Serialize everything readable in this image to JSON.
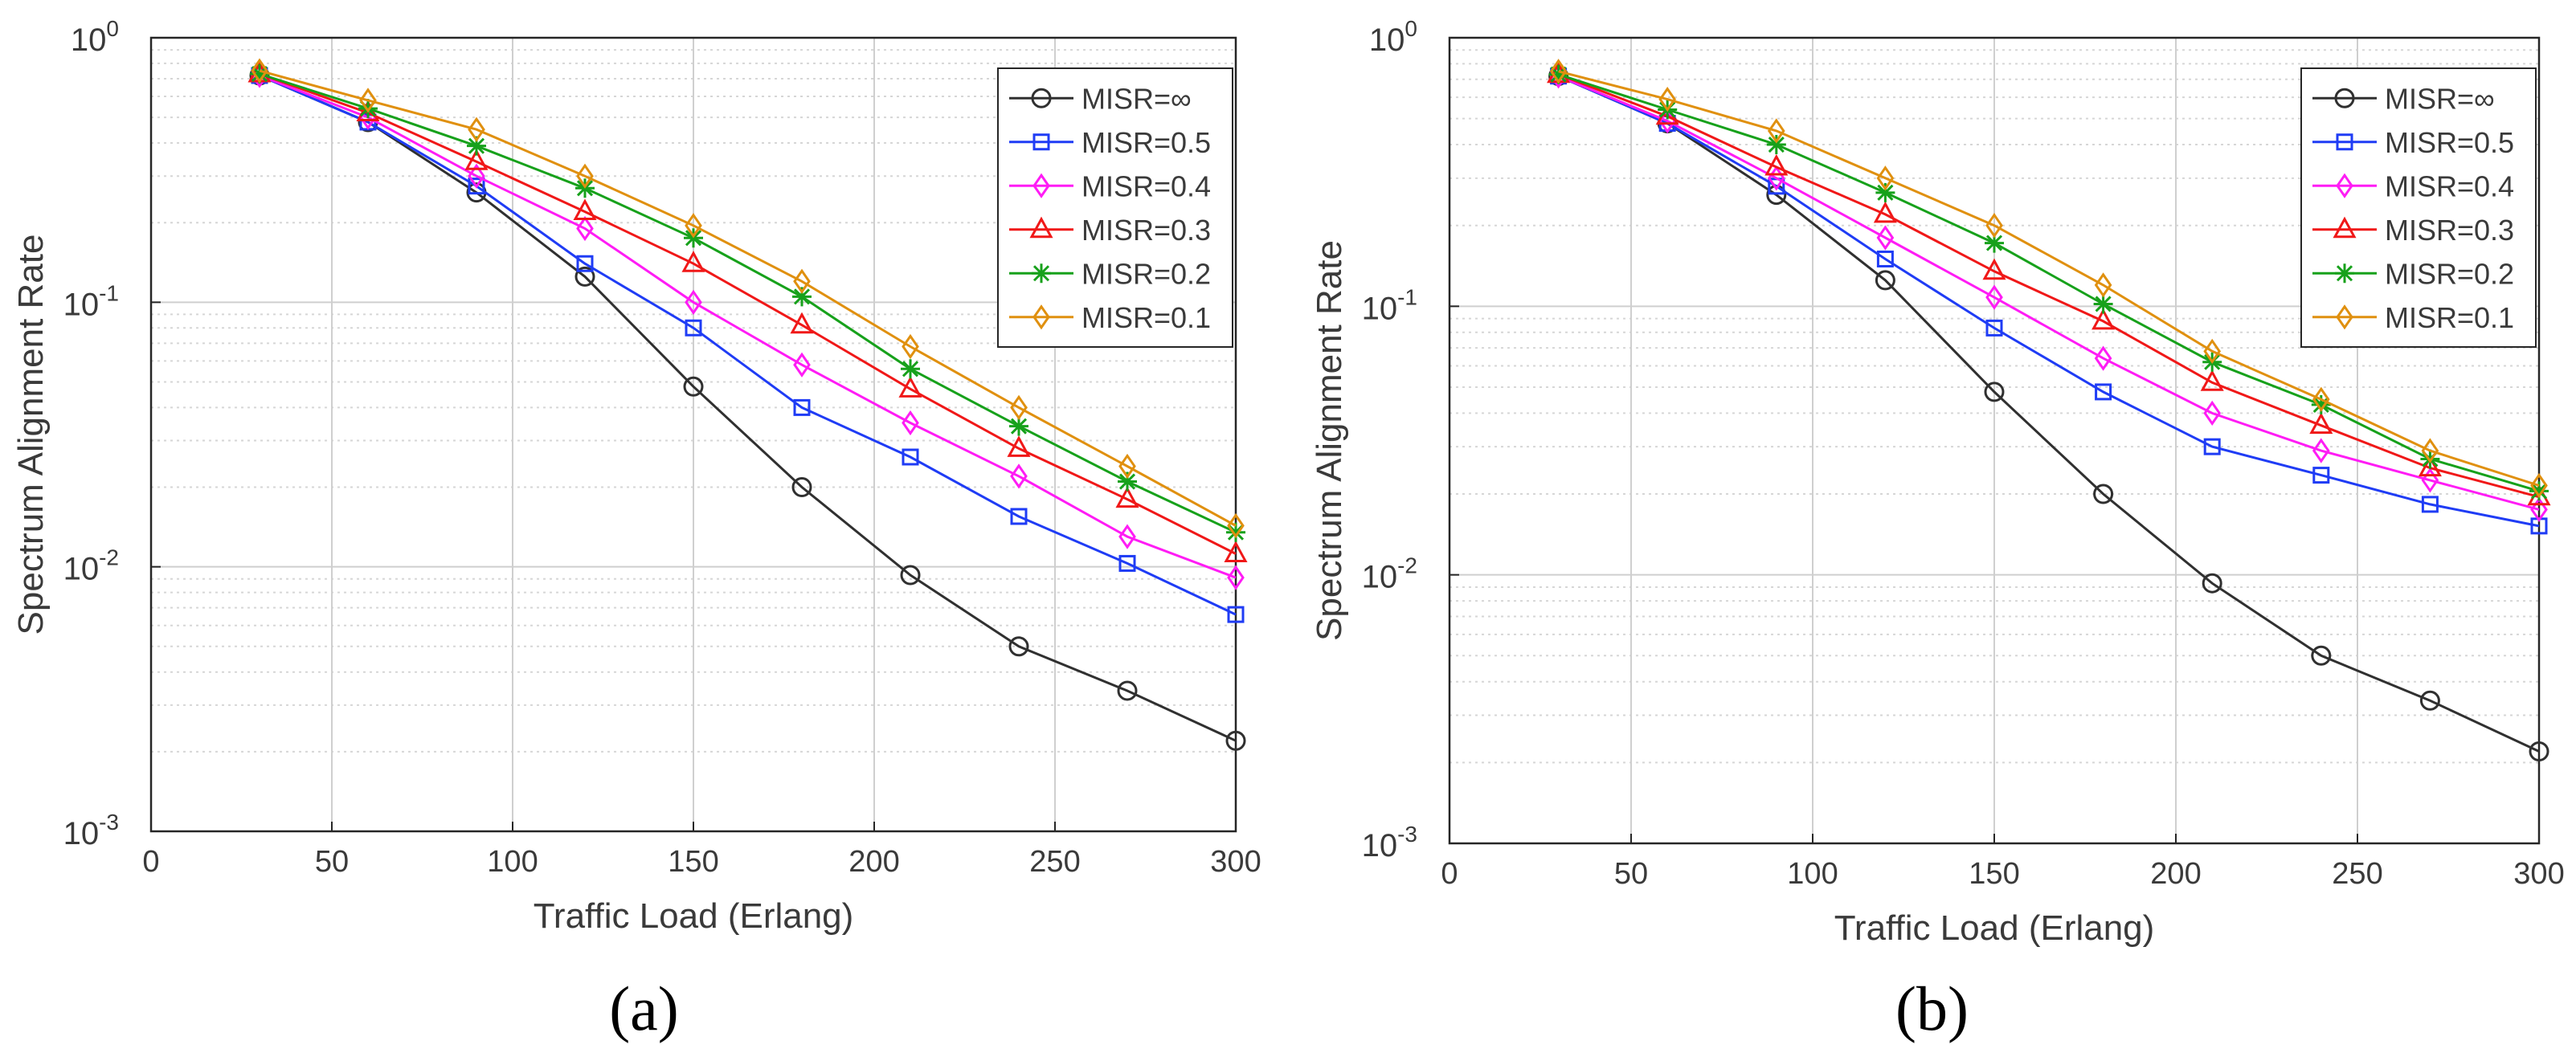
{
  "colors": {
    "MISR=∞": "#303030",
    "MISR=0.5": "#1f3cf5",
    "MISR=0.4": "#ff1cf5",
    "MISR=0.3": "#f01818",
    "MISR=0.2": "#17a11b",
    "MISR=0.1": "#e0900f"
  },
  "chart_data": [
    {
      "type": "line",
      "caption": "(a)",
      "xlabel": "Traffic Load (Erlang)",
      "ylabel": "Spectrum Alignment Rate",
      "xlim": [
        0,
        300
      ],
      "ylim": [
        0.001,
        1
      ],
      "yscale": "log",
      "xticks": [
        0,
        50,
        100,
        150,
        200,
        250,
        300
      ],
      "yticks": [
        {
          "base": "10",
          "exp": "-3",
          "value": 0.001
        },
        {
          "base": "10",
          "exp": "-2",
          "value": 0.01
        },
        {
          "base": "10",
          "exp": "-1",
          "value": 0.1
        },
        {
          "base": "10",
          "exp": "0",
          "value": 1
        }
      ],
      "grid": true,
      "legend": "top-right",
      "x": [
        30,
        60,
        90,
        120,
        150,
        180,
        210,
        240,
        270,
        300
      ],
      "series": [
        {
          "name": "MISR=∞",
          "marker": "circle",
          "values": [
            0.72,
            0.48,
            0.26,
            0.125,
            0.048,
            0.02,
            0.0093,
            0.005,
            0.0034,
            0.0022
          ]
        },
        {
          "name": "MISR=0.5",
          "marker": "square",
          "values": [
            0.72,
            0.48,
            0.275,
            0.14,
            0.08,
            0.04,
            0.026,
            0.0155,
            0.0103,
            0.0066
          ]
        },
        {
          "name": "MISR=0.4",
          "marker": "diamond",
          "values": [
            0.72,
            0.5,
            0.3,
            0.19,
            0.1,
            0.058,
            0.035,
            0.022,
            0.013,
            0.0091
          ]
        },
        {
          "name": "MISR=0.3",
          "marker": "triangle",
          "values": [
            0.73,
            0.52,
            0.34,
            0.22,
            0.14,
            0.082,
            0.047,
            0.028,
            0.018,
            0.0112
          ]
        },
        {
          "name": "MISR=0.2",
          "marker": "star",
          "values": [
            0.73,
            0.54,
            0.39,
            0.27,
            0.175,
            0.105,
            0.056,
            0.034,
            0.021,
            0.0135
          ]
        },
        {
          "name": "MISR=0.1",
          "marker": "diamond",
          "values": [
            0.75,
            0.58,
            0.45,
            0.3,
            0.195,
            0.12,
            0.068,
            0.04,
            0.024,
            0.0143
          ]
        }
      ]
    },
    {
      "type": "line",
      "caption": "(b)",
      "xlabel": "Traffic Load (Erlang)",
      "ylabel": "Spectrum Alignment Rate",
      "xlim": [
        0,
        300
      ],
      "ylim": [
        0.001,
        1
      ],
      "yscale": "log",
      "xticks": [
        0,
        50,
        100,
        150,
        200,
        250,
        300
      ],
      "yticks": [
        {
          "base": "10",
          "exp": "-3",
          "value": 0.001
        },
        {
          "base": "10",
          "exp": "-2",
          "value": 0.01
        },
        {
          "base": "10",
          "exp": "-1",
          "value": 0.1
        },
        {
          "base": "10",
          "exp": "0",
          "value": 1
        }
      ],
      "grid": true,
      "legend": "top-right",
      "x": [
        30,
        60,
        90,
        120,
        150,
        180,
        210,
        240,
        270,
        300
      ],
      "series": [
        {
          "name": "MISR=∞",
          "marker": "circle",
          "values": [
            0.72,
            0.48,
            0.26,
            0.125,
            0.048,
            0.02,
            0.0093,
            0.005,
            0.0034,
            0.0022
          ]
        },
        {
          "name": "MISR=0.5",
          "marker": "square",
          "values": [
            0.72,
            0.48,
            0.28,
            0.15,
            0.083,
            0.048,
            0.03,
            0.0235,
            0.0183,
            0.0152
          ]
        },
        {
          "name": "MISR=0.4",
          "marker": "diamond",
          "values": [
            0.72,
            0.49,
            0.3,
            0.18,
            0.108,
            0.064,
            0.04,
            0.029,
            0.0225,
            0.0175
          ]
        },
        {
          "name": "MISR=0.3",
          "marker": "triangle",
          "values": [
            0.73,
            0.51,
            0.33,
            0.22,
            0.135,
            0.088,
            0.052,
            0.036,
            0.025,
            0.0195
          ]
        },
        {
          "name": "MISR=0.2",
          "marker": "star",
          "values": [
            0.73,
            0.54,
            0.4,
            0.265,
            0.172,
            0.102,
            0.062,
            0.043,
            0.027,
            0.0205
          ]
        },
        {
          "name": "MISR=0.1",
          "marker": "diamond",
          "values": [
            0.75,
            0.59,
            0.45,
            0.3,
            0.2,
            0.12,
            0.068,
            0.045,
            0.029,
            0.0215
          ]
        }
      ]
    }
  ]
}
